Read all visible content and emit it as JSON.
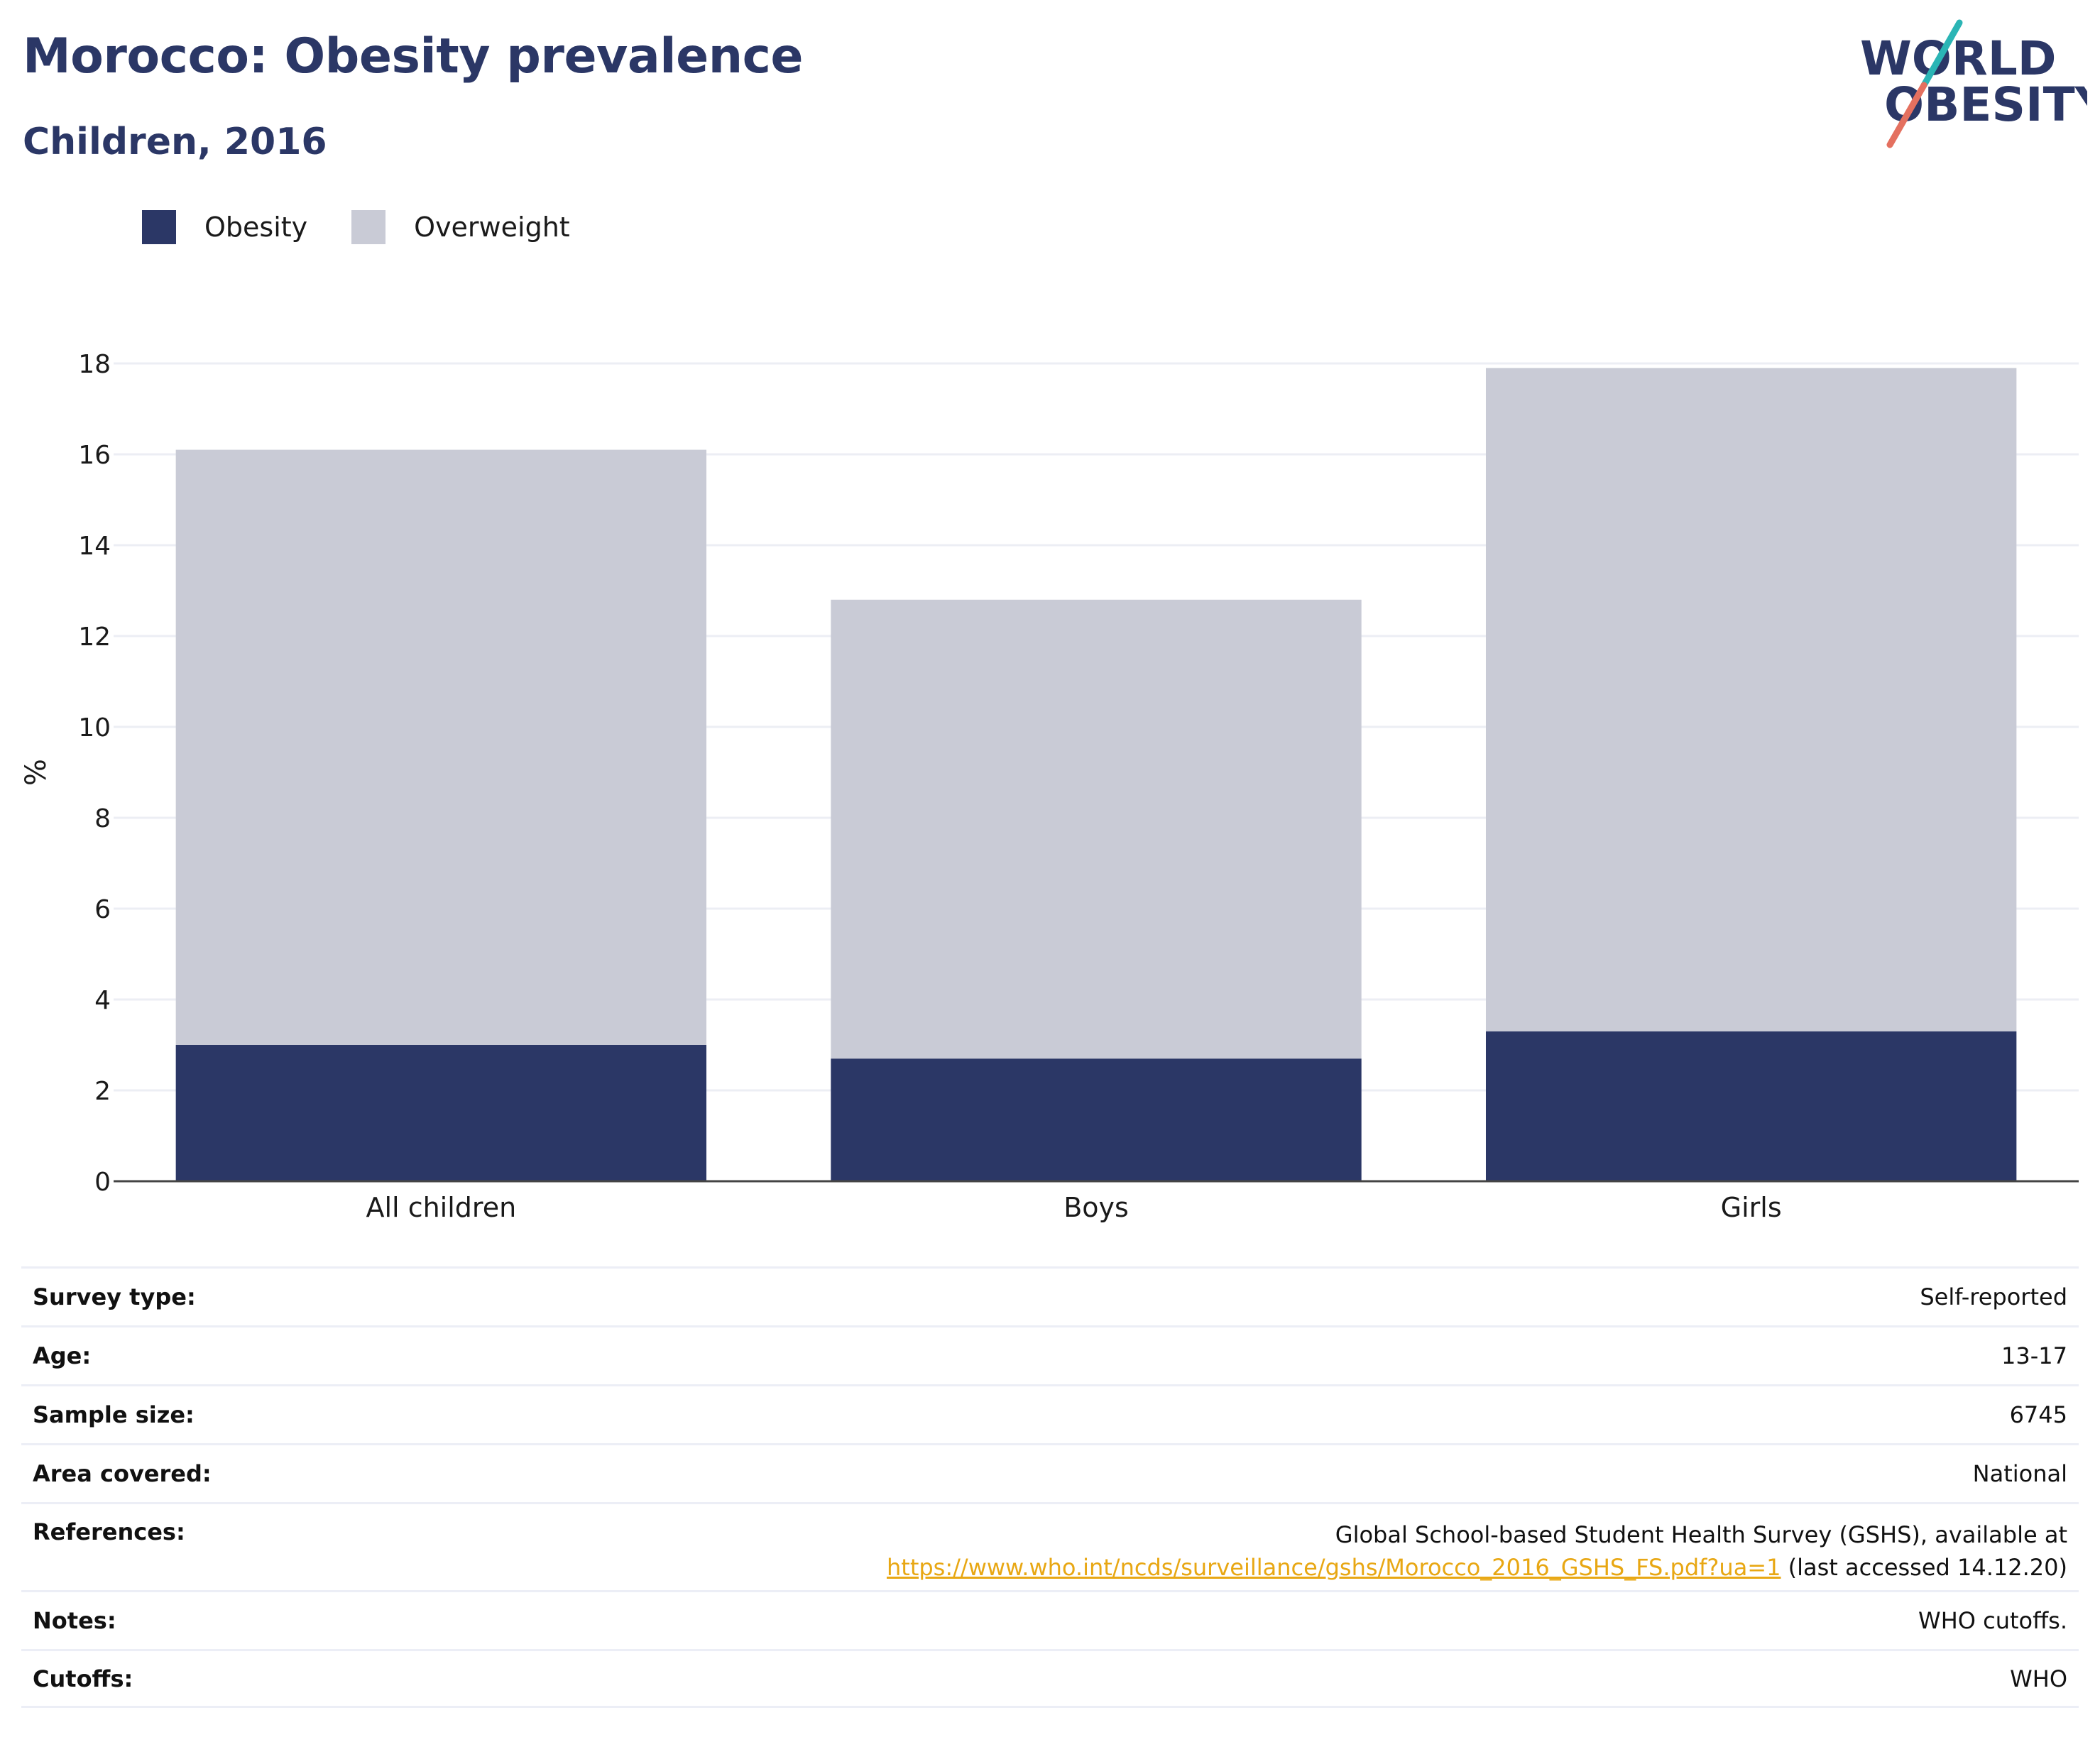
{
  "header": {
    "title": "Morocco: Obesity prevalence",
    "subtitle": "Children, 2016"
  },
  "logo": {
    "line1": "WORLD",
    "line2": "OBESITY",
    "accent_teal": "#2bb5b5",
    "accent_coral": "#e4705f"
  },
  "legend": {
    "items": [
      {
        "label": "Obesity",
        "color": "#2b3766"
      },
      {
        "label": "Overweight",
        "color": "#c9cbd6"
      }
    ]
  },
  "chart_data": {
    "type": "bar",
    "stacked": true,
    "categories": [
      "All children",
      "Boys",
      "Girls"
    ],
    "series": [
      {
        "name": "Obesity",
        "values": [
          3.0,
          2.7,
          3.3
        ],
        "color": "#2b3766"
      },
      {
        "name": "Overweight",
        "values": [
          13.1,
          10.1,
          14.6
        ],
        "color": "#c9cbd6"
      }
    ],
    "ylabel": "%",
    "xlabel": "",
    "ylim": [
      0,
      18
    ],
    "yticks": [
      0,
      2,
      4,
      6,
      8,
      10,
      12,
      14,
      16,
      18
    ],
    "grid": true,
    "legend_position": "top-left"
  },
  "info": {
    "survey_type": {
      "label": "Survey type:",
      "value": "Self-reported"
    },
    "age": {
      "label": "Age:",
      "value": "13-17"
    },
    "sample_size": {
      "label": "Sample size:",
      "value": "6745"
    },
    "area": {
      "label": "Area covered:",
      "value": "National"
    },
    "references": {
      "label": "References:",
      "text": "Global School-based Student Health Survey (GSHS), available at",
      "link": "https://www.who.int/ncds/surveillance/gshs/Morocco_2016_GSHS_FS.pdf?ua=1",
      "suffix": " (last accessed 14.12.20)"
    },
    "notes": {
      "label": "Notes:",
      "value": "WHO cutoffs."
    },
    "cutoffs": {
      "label": "Cutoffs:",
      "value": "WHO"
    }
  }
}
